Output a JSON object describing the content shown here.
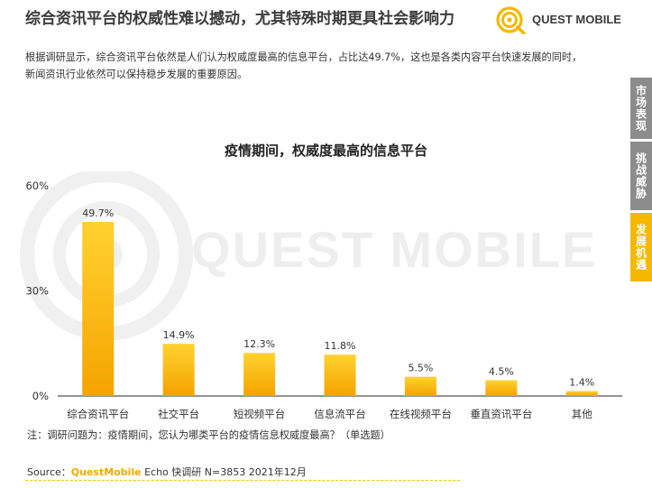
{
  "header": {
    "title": "综合资讯平台的权威性难以撼动，尤其特殊时期更具社会影响力",
    "logo_text": "QUEST MOBILE"
  },
  "description": {
    "line1": "根据调研显示，综合资讯平台依然是人们认为权威度最高的信息平台，占比达49.7%，这也是各类内容平台快速发展的同时，",
    "line2": "新闻资讯行业依然可以保持稳步发展的重要原因。"
  },
  "side_tabs": [
    {
      "label": "市场表现",
      "active": false
    },
    {
      "label": "挑战威胁",
      "active": false
    },
    {
      "label": "发展机遇",
      "active": true
    }
  ],
  "watermark": "QUEST MOBILE",
  "chart_data": {
    "type": "bar",
    "title": "疫情期间，权威度最高的信息平台",
    "categories": [
      "综合资讯平台",
      "社交平台",
      "短视频平台",
      "信息流平台",
      "在线视频平台",
      "垂直资讯平台",
      "其他"
    ],
    "values": [
      49.7,
      14.9,
      12.3,
      11.8,
      5.5,
      4.5,
      1.4
    ],
    "value_labels": [
      "49.7%",
      "14.9%",
      "12.3%",
      "11.8%",
      "5.5%",
      "4.5%",
      "1.4%"
    ],
    "ylim": [
      0,
      60
    ],
    "yticks": [
      0,
      30,
      60
    ],
    "ytick_labels": [
      "0%",
      "30%",
      "60%"
    ],
    "xlabel": "",
    "ylabel": "",
    "grid": false,
    "colors": {
      "bar_top": "#ffd230",
      "bar_bottom": "#f5a300",
      "axis": "#555555"
    }
  },
  "note": "注：调研问题为：疫情期间，您认为哪类平台的疫情信息权威度最高？（单选题）",
  "source": {
    "prefix": "Source：",
    "brand": "QuestMobile",
    "rest": " Echo 快调研 N=3853 2021年12月"
  },
  "colors": {
    "accent": "#f5b800",
    "tab_inactive": "#8c8c8c",
    "tab_active": "#f5b800"
  }
}
